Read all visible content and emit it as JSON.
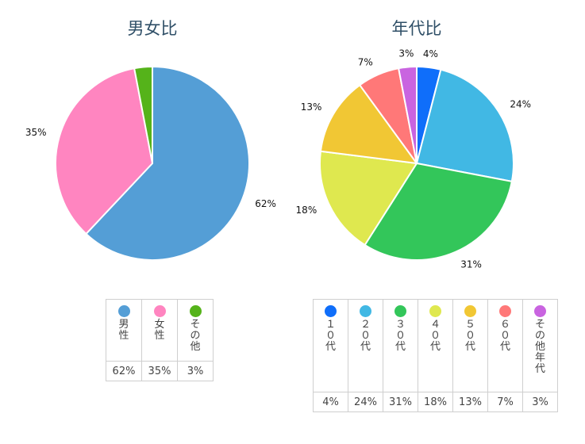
{
  "chart_data": [
    {
      "type": "pie",
      "title": "男女比",
      "slices": [
        {
          "label": "男性",
          "value": 62,
          "color": "#549ed6"
        },
        {
          "label": "女性",
          "value": 35,
          "color": "#ff85c0"
        },
        {
          "label": "その他",
          "value": 3,
          "color": "#55b31a"
        }
      ],
      "data_labels": [
        "62%",
        "35%",
        ""
      ],
      "legend": "table-below"
    },
    {
      "type": "pie",
      "title": "年代比",
      "slices": [
        {
          "label": "10代",
          "value": 4,
          "color": "#0f6efa"
        },
        {
          "label": "20代",
          "value": 24,
          "color": "#41b8e4"
        },
        {
          "label": "30代",
          "value": 31,
          "color": "#33c65a"
        },
        {
          "label": "40代",
          "value": 18,
          "color": "#dfe84f"
        },
        {
          "label": "50代",
          "value": 13,
          "color": "#f1c734"
        },
        {
          "label": "60代",
          "value": 7,
          "color": "#ff7878"
        },
        {
          "label": "その他年代",
          "value": 3,
          "color": "#c964e0"
        }
      ],
      "data_labels": [
        "4%",
        "24%",
        "31%",
        "18%",
        "13%",
        "7%",
        "3%"
      ],
      "legend": "table-below"
    }
  ],
  "legend_left": {
    "items": [
      {
        "label": "男性",
        "value": "62%"
      },
      {
        "label": "女性",
        "value": "35%"
      },
      {
        "label": "その他",
        "value": "3%"
      }
    ]
  },
  "legend_right": {
    "items": [
      {
        "label": "１０代",
        "value": "4%"
      },
      {
        "label": "２０代",
        "value": "24%"
      },
      {
        "label": "３０代",
        "value": "31%"
      },
      {
        "label": "４０代",
        "value": "18%"
      },
      {
        "label": "５０代",
        "value": "13%"
      },
      {
        "label": "６０代",
        "value": "7%"
      },
      {
        "label": "その他　年代",
        "value": "3%"
      }
    ]
  }
}
